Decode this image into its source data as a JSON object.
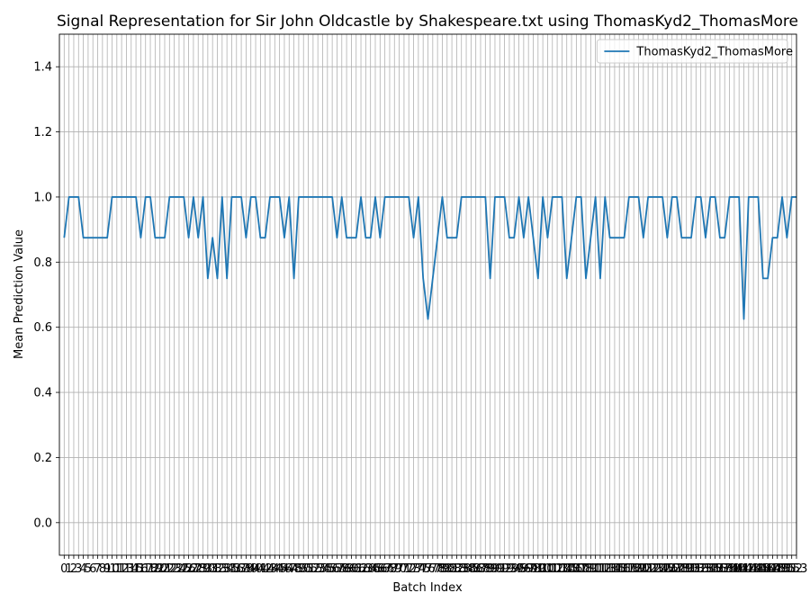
{
  "chart_data": {
    "type": "line",
    "title": "Signal Representation for Sir John Oldcastle by Shakespeare.txt using ThomasKyd2_ThomasMore",
    "xlabel": "Batch Index",
    "ylabel": "Mean Prediction Value",
    "ylim": [
      -0.1,
      1.5
    ],
    "xlim": [
      -1,
      153
    ],
    "yticks": [
      "0.0",
      "0.2",
      "0.4",
      "0.6",
      "0.8",
      "1.0",
      "1.2",
      "1.4"
    ],
    "x_start": 0,
    "grid": true,
    "legend_position": "top-right",
    "series": [
      {
        "name": "ThomasKyd2_ThomasMore",
        "color": "#1f77b4",
        "values": [
          0.875,
          1.0,
          1.0,
          1.0,
          0.875,
          0.875,
          0.875,
          0.875,
          0.875,
          0.875,
          1.0,
          1.0,
          1.0,
          1.0,
          1.0,
          1.0,
          0.875,
          1.0,
          1.0,
          0.875,
          0.875,
          0.875,
          1.0,
          1.0,
          1.0,
          1.0,
          0.875,
          1.0,
          0.875,
          1.0,
          0.75,
          0.875,
          0.75,
          1.0,
          0.75,
          1.0,
          1.0,
          1.0,
          0.875,
          1.0,
          1.0,
          0.875,
          0.875,
          1.0,
          1.0,
          1.0,
          0.875,
          1.0,
          0.75,
          1.0,
          1.0,
          1.0,
          1.0,
          1.0,
          1.0,
          1.0,
          1.0,
          0.875,
          1.0,
          0.875,
          0.875,
          0.875,
          1.0,
          0.875,
          0.875,
          1.0,
          0.875,
          1.0,
          1.0,
          1.0,
          1.0,
          1.0,
          1.0,
          0.875,
          1.0,
          0.75,
          0.625,
          0.75,
          0.875,
          1.0,
          0.875,
          0.875,
          0.875,
          1.0,
          1.0,
          1.0,
          1.0,
          1.0,
          1.0,
          0.75,
          1.0,
          1.0,
          1.0,
          0.875,
          0.875,
          1.0,
          0.875,
          1.0,
          0.875,
          0.75,
          1.0,
          0.875,
          1.0,
          1.0,
          1.0,
          0.75,
          0.875,
          1.0,
          1.0,
          0.75,
          0.875,
          1.0,
          0.75,
          1.0,
          0.875,
          0.875,
          0.875,
          0.875,
          1.0,
          1.0,
          1.0,
          0.875,
          1.0,
          1.0,
          1.0,
          1.0,
          0.875,
          1.0,
          1.0,
          0.875,
          0.875,
          0.875,
          1.0,
          1.0,
          0.875,
          1.0,
          1.0,
          0.875,
          0.875,
          1.0,
          1.0,
          1.0,
          0.625,
          1.0,
          1.0,
          1.0,
          0.75,
          0.75,
          0.875,
          0.875,
          1.0,
          0.875,
          1.0,
          1.0
        ]
      }
    ]
  }
}
